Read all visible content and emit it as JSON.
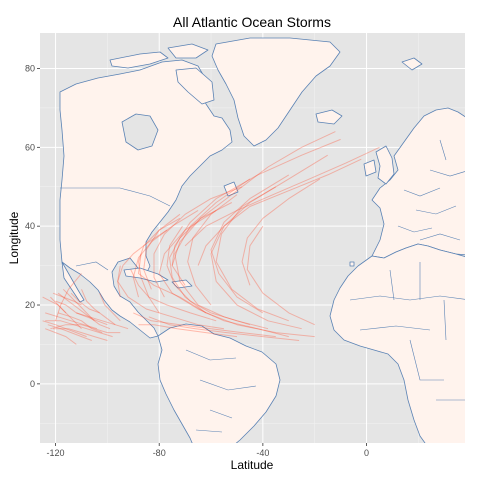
{
  "chart_data": {
    "type": "map",
    "title": "All Atlantic Ocean Storms",
    "xlabel": "Latitude",
    "ylabel": "Longitude",
    "xlim": [
      -126,
      38
    ],
    "ylim": [
      -15,
      89
    ],
    "x_ticks": [
      -120,
      -80,
      -40,
      0
    ],
    "x_tick_labels": [
      "-120",
      "-80",
      "-40",
      "0"
    ],
    "y_ticks": [
      0,
      20,
      40,
      60,
      80
    ],
    "y_tick_labels": [
      "0",
      "20",
      "40",
      "60",
      "80"
    ],
    "grid": true,
    "layers": [
      {
        "name": "world-map",
        "kind": "land-outlines"
      },
      {
        "name": "storm-tracks",
        "kind": "lines"
      }
    ],
    "storm_tracks": [
      [
        [
          -45,
          15
        ],
        [
          -55,
          17
        ],
        [
          -65,
          20
        ],
        [
          -72,
          26
        ],
        [
          -74,
          33
        ],
        [
          -68,
          40
        ],
        [
          -58,
          46
        ],
        [
          -45,
          52
        ]
      ],
      [
        [
          -30,
          12
        ],
        [
          -42,
          14
        ],
        [
          -55,
          16
        ],
        [
          -65,
          19
        ],
        [
          -75,
          23
        ],
        [
          -80,
          28
        ],
        [
          -78,
          33
        ],
        [
          -70,
          39
        ],
        [
          -58,
          44
        ]
      ],
      [
        [
          -20,
          12
        ],
        [
          -35,
          13
        ],
        [
          -50,
          15
        ],
        [
          -62,
          18
        ],
        [
          -72,
          22
        ],
        [
          -82,
          25
        ],
        [
          -88,
          28
        ],
        [
          -87,
          33
        ]
      ],
      [
        [
          -25,
          14
        ],
        [
          -38,
          16
        ],
        [
          -50,
          20
        ],
        [
          -58,
          26
        ],
        [
          -60,
          33
        ],
        [
          -55,
          40
        ],
        [
          -45,
          46
        ],
        [
          -30,
          52
        ],
        [
          -15,
          58
        ]
      ],
      [
        [
          -55,
          14
        ],
        [
          -65,
          15
        ],
        [
          -75,
          17
        ],
        [
          -85,
          19
        ],
        [
          -92,
          22
        ],
        [
          -96,
          26
        ],
        [
          -95,
          30
        ]
      ],
      [
        [
          -40,
          18
        ],
        [
          -50,
          22
        ],
        [
          -57,
          28
        ],
        [
          -60,
          34
        ],
        [
          -55,
          41
        ],
        [
          -45,
          47
        ],
        [
          -30,
          53
        ]
      ],
      [
        [
          -70,
          25
        ],
        [
          -75,
          30
        ],
        [
          -74,
          35
        ],
        [
          -68,
          41
        ],
        [
          -58,
          47
        ],
        [
          -42,
          53
        ],
        [
          -25,
          58
        ],
        [
          -10,
          62
        ]
      ],
      [
        [
          -78,
          22
        ],
        [
          -82,
          27
        ],
        [
          -82,
          33
        ],
        [
          -78,
          38
        ],
        [
          -70,
          43
        ],
        [
          -60,
          47
        ],
        [
          -48,
          50
        ]
      ],
      [
        [
          -35,
          12
        ],
        [
          -48,
          13
        ],
        [
          -60,
          14
        ],
        [
          -72,
          15
        ],
        [
          -83,
          16
        ],
        [
          -90,
          18
        ]
      ],
      [
        [
          -60,
          20
        ],
        [
          -66,
          25
        ],
        [
          -69,
          31
        ],
        [
          -67,
          37
        ],
        [
          -60,
          43
        ],
        [
          -50,
          48
        ]
      ],
      [
        [
          -30,
          16
        ],
        [
          -42,
          19
        ],
        [
          -52,
          24
        ],
        [
          -58,
          31
        ],
        [
          -56,
          38
        ],
        [
          -48,
          45
        ],
        [
          -35,
          50
        ]
      ],
      [
        [
          -88,
          22
        ],
        [
          -90,
          27
        ],
        [
          -88,
          32
        ],
        [
          -83,
          36
        ],
        [
          -75,
          40
        ],
        [
          -65,
          44
        ]
      ],
      [
        [
          -50,
          12
        ],
        [
          -62,
          13
        ],
        [
          -73,
          14
        ],
        [
          -82,
          15
        ],
        [
          -88,
          15
        ]
      ],
      [
        [
          -65,
          30
        ],
        [
          -62,
          35
        ],
        [
          -55,
          40
        ],
        [
          -45,
          45
        ],
        [
          -30,
          49
        ],
        [
          -15,
          53
        ],
        [
          -2,
          57
        ]
      ],
      [
        [
          -75,
          30
        ],
        [
          -72,
          36
        ],
        [
          -64,
          42
        ],
        [
          -52,
          48
        ],
        [
          -38,
          55
        ],
        [
          -25,
          60
        ],
        [
          -12,
          64
        ]
      ],
      [
        [
          -45,
          25
        ],
        [
          -48,
          31
        ],
        [
          -46,
          37
        ],
        [
          -40,
          42
        ],
        [
          -30,
          47
        ],
        [
          -18,
          52
        ]
      ],
      [
        [
          -20,
          15
        ],
        [
          -30,
          18
        ],
        [
          -40,
          23
        ],
        [
          -46,
          29
        ],
        [
          -45,
          35
        ],
        [
          -40,
          40
        ]
      ],
      [
        [
          -80,
          18
        ],
        [
          -84,
          22
        ],
        [
          -87,
          27
        ],
        [
          -88,
          31
        ],
        [
          -86,
          35
        ],
        [
          -80,
          39
        ],
        [
          -72,
          42
        ]
      ],
      [
        [
          -95,
          22
        ],
        [
          -96,
          26
        ],
        [
          -94,
          30
        ],
        [
          -90,
          33
        ],
        [
          -84,
          36
        ],
        [
          -77,
          39
        ]
      ],
      [
        [
          -58,
          16
        ],
        [
          -68,
          18
        ],
        [
          -77,
          20
        ],
        [
          -84,
          22
        ],
        [
          -88,
          25
        ],
        [
          -91,
          29
        ]
      ],
      [
        [
          -38,
          14
        ],
        [
          -50,
          16
        ],
        [
          -60,
          18
        ],
        [
          -68,
          21
        ],
        [
          -74,
          25
        ],
        [
          -77,
          30
        ],
        [
          -76,
          35
        ],
        [
          -71,
          40
        ]
      ],
      [
        [
          -62,
          18
        ],
        [
          -70,
          22
        ],
        [
          -75,
          27
        ],
        [
          -76,
          32
        ],
        [
          -72,
          37
        ],
        [
          -64,
          42
        ],
        [
          -52,
          46
        ]
      ],
      [
        [
          -26,
          11
        ],
        [
          -40,
          12
        ],
        [
          -54,
          13
        ],
        [
          -66,
          14
        ],
        [
          -76,
          15
        ],
        [
          -84,
          17
        ]
      ],
      [
        [
          -70,
          35
        ],
        [
          -62,
          40
        ],
        [
          -50,
          44
        ],
        [
          -36,
          48
        ],
        [
          -22,
          52
        ],
        [
          -8,
          56
        ],
        [
          5,
          60
        ]
      ],
      [
        [
          -83,
          24
        ],
        [
          -86,
          29
        ],
        [
          -85,
          34
        ],
        [
          -80,
          39
        ],
        [
          -72,
          43
        ]
      ],
      [
        [
          -110,
          14
        ],
        [
          -113,
          16
        ],
        [
          -116,
          18
        ],
        [
          -119,
          20
        ],
        [
          -122,
          22
        ]
      ],
      [
        [
          -102,
          13
        ],
        [
          -106,
          14
        ],
        [
          -110,
          16
        ],
        [
          -114,
          17
        ],
        [
          -119,
          18
        ]
      ],
      [
        [
          -98,
          12
        ],
        [
          -103,
          13
        ],
        [
          -108,
          14
        ],
        [
          -113,
          15
        ],
        [
          -118,
          16
        ],
        [
          -124,
          16
        ]
      ],
      [
        [
          -105,
          16
        ],
        [
          -108,
          18
        ],
        [
          -111,
          20
        ],
        [
          -114,
          22
        ],
        [
          -117,
          24
        ]
      ],
      [
        [
          -100,
          15
        ],
        [
          -104,
          16
        ],
        [
          -108,
          17
        ],
        [
          -112,
          18
        ],
        [
          -116,
          20
        ],
        [
          -120,
          21
        ]
      ],
      [
        [
          -95,
          13
        ],
        [
          -100,
          13
        ],
        [
          -105,
          14
        ],
        [
          -110,
          15
        ],
        [
          -116,
          15
        ],
        [
          -122,
          14
        ]
      ],
      [
        [
          -108,
          12
        ],
        [
          -112,
          13
        ],
        [
          -116,
          14
        ],
        [
          -120,
          15
        ],
        [
          -125,
          16
        ]
      ],
      [
        [
          -103,
          18
        ],
        [
          -107,
          19
        ],
        [
          -111,
          21
        ],
        [
          -114,
          23
        ]
      ],
      [
        [
          -97,
          15
        ],
        [
          -101,
          17
        ],
        [
          -105,
          19
        ],
        [
          -108,
          21
        ],
        [
          -110,
          24
        ]
      ],
      [
        [
          -112,
          10
        ],
        [
          -116,
          12
        ],
        [
          -120,
          13
        ],
        [
          -124,
          14
        ]
      ],
      [
        [
          -106,
          11
        ],
        [
          -110,
          12
        ],
        [
          -114,
          13
        ],
        [
          -118,
          14
        ],
        [
          -123,
          15
        ]
      ],
      [
        [
          -99,
          14
        ],
        [
          -103,
          15
        ],
        [
          -107,
          17
        ],
        [
          -111,
          19
        ],
        [
          -115,
          21
        ],
        [
          -119,
          23
        ]
      ],
      [
        [
          -92,
          14
        ],
        [
          -97,
          15
        ],
        [
          -102,
          16
        ],
        [
          -107,
          17
        ],
        [
          -112,
          18
        ]
      ],
      [
        [
          -120,
          16
        ],
        [
          -118,
          20
        ],
        [
          -115,
          24
        ],
        [
          -110,
          28
        ]
      ],
      [
        [
          -104,
          14
        ],
        [
          -109,
          15
        ],
        [
          -114,
          16
        ],
        [
          -119,
          17
        ],
        [
          -124,
          18
        ]
      ],
      [
        [
          -100,
          11
        ],
        [
          -105,
          12
        ],
        [
          -110,
          13
        ],
        [
          -115,
          14
        ],
        [
          -121,
          14
        ]
      ],
      [
        [
          -116,
          18
        ],
        [
          -119,
          20
        ],
        [
          -122,
          21
        ],
        [
          -125,
          22
        ]
      ],
      [
        [
          -95,
          16
        ],
        [
          -98,
          18
        ],
        [
          -101,
          20
        ],
        [
          -103,
          23
        ]
      ],
      [
        [
          -110,
          20
        ],
        [
          -113,
          21
        ],
        [
          -117,
          22
        ],
        [
          -121,
          23
        ]
      ]
    ]
  }
}
